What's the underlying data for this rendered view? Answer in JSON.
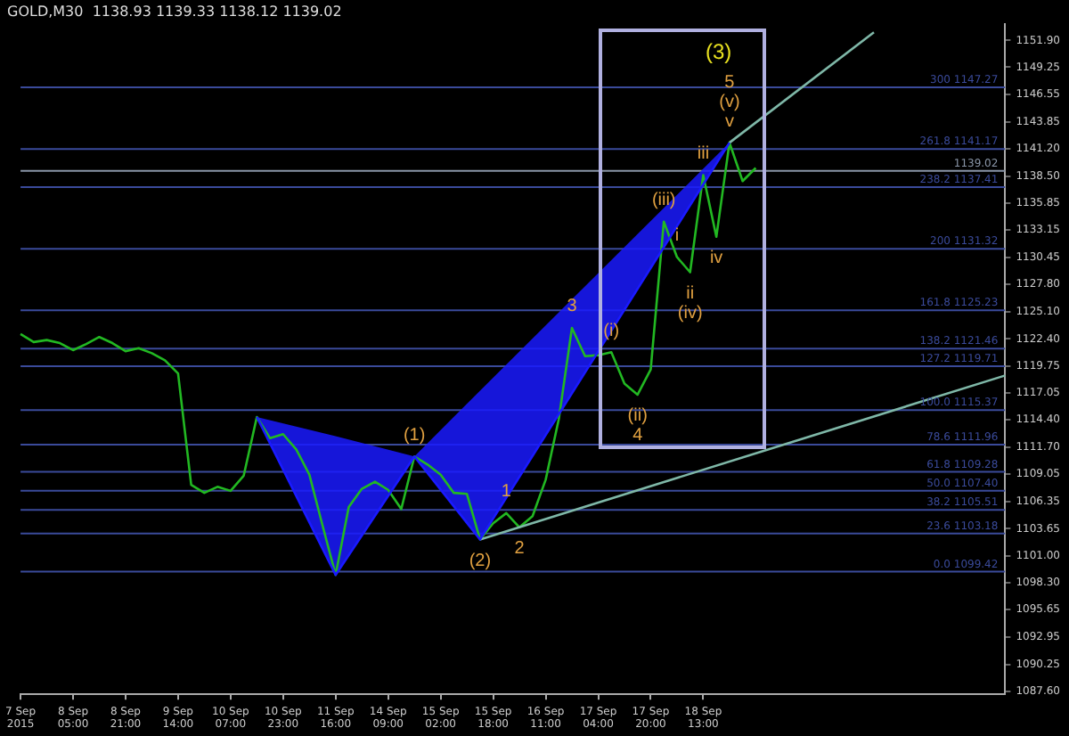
{
  "chart_data": {
    "type": "line",
    "title": "GOLD,M30  1138.93 1139.33 1138.12 1139.02",
    "categories": [
      "7 Sep 2015",
      null,
      null,
      null,
      "8 Sep 05:00",
      null,
      null,
      null,
      "8 Sep 21:00",
      null,
      null,
      null,
      "9 Sep 14:00",
      null,
      null,
      null,
      "10 Sep 07:00",
      null,
      null,
      null,
      "10 Sep 23:00",
      null,
      null,
      null,
      "11 Sep 16:00",
      null,
      null,
      null,
      "14 Sep 09:00",
      null,
      null,
      null,
      "15 Sep 02:00",
      null,
      null,
      null,
      "15 Sep 18:00",
      null,
      null,
      null,
      "16 Sep 11:00",
      null,
      null,
      null,
      "17 Sep 04:00",
      null,
      null,
      null,
      "17 Sep 20:00",
      null,
      null,
      null,
      "18 Sep 13:00",
      null,
      null,
      null,
      null,
      null,
      null,
      null,
      null,
      null,
      null,
      null,
      null,
      null,
      null,
      null,
      null,
      null,
      null,
      null,
      null,
      null,
      null,
      null
    ],
    "ylim": [
      1087.3,
      1153.5
    ],
    "yticks": [
      {
        "value": 1087.6,
        "label": "1087.60"
      },
      {
        "value": 1090.25,
        "label": "1090.25"
      },
      {
        "value": 1092.95,
        "label": "1092.95"
      },
      {
        "value": 1095.65,
        "label": "1095.65"
      },
      {
        "value": 1098.3,
        "label": "1098.30"
      },
      {
        "value": 1101.0,
        "label": "1101.00"
      },
      {
        "value": 1103.65,
        "label": "1103.65"
      },
      {
        "value": 1106.35,
        "label": "1106.35"
      },
      {
        "value": 1109.05,
        "label": "1109.05"
      },
      {
        "value": 1111.7,
        "label": "1111.70"
      },
      {
        "value": 1114.4,
        "label": "1114.40"
      },
      {
        "value": 1117.05,
        "label": "1117.05"
      },
      {
        "value": 1119.75,
        "label": "1119.75"
      },
      {
        "value": 1122.4,
        "label": "1122.40"
      },
      {
        "value": 1125.1,
        "label": "1125.10"
      },
      {
        "value": 1127.8,
        "label": "1127.80"
      },
      {
        "value": 1130.45,
        "label": "1130.45"
      },
      {
        "value": 1133.15,
        "label": "1133.15"
      },
      {
        "value": 1135.85,
        "label": "1135.85"
      },
      {
        "value": 1138.5,
        "label": "1138.50"
      },
      {
        "value": 1141.2,
        "label": "1141.20"
      },
      {
        "value": 1143.85,
        "label": "1143.85"
      },
      {
        "value": 1146.55,
        "label": "1146.55"
      },
      {
        "value": 1149.25,
        "label": "1149.25"
      },
      {
        "value": 1151.9,
        "label": "1151.90"
      }
    ],
    "grid": false,
    "legend": false,
    "series": [
      {
        "color": "#1a1aff",
        "values": [
          null,
          null,
          null,
          null,
          null,
          null,
          null,
          null,
          null,
          null,
          null,
          null,
          null,
          null,
          null,
          null,
          null,
          null,
          1114.7,
          null,
          null,
          null,
          null,
          null,
          1099.1,
          null,
          null,
          null,
          null,
          null,
          1110.8,
          null,
          null,
          null,
          null,
          1102.6,
          null,
          null,
          null,
          null,
          null,
          null,
          null,
          null,
          null,
          null,
          null,
          null,
          null,
          null,
          null,
          null,
          null,
          null,
          1141.8,
          null,
          null,
          null,
          null,
          null,
          null,
          null,
          null,
          null,
          null,
          null,
          null,
          null,
          null,
          null,
          null,
          null,
          null,
          null,
          null,
          null
        ],
        "lower": [
          null,
          null,
          null,
          null,
          null,
          null,
          null,
          null,
          null,
          null,
          null,
          null,
          null,
          null,
          null,
          null,
          null,
          null,
          1114.7,
          null,
          null,
          null,
          null,
          null,
          1099.1,
          null,
          null,
          null,
          null,
          null,
          1110.8,
          null,
          null,
          null,
          null,
          1102.6,
          null,
          null,
          null,
          null,
          null,
          null,
          null,
          null,
          null,
          null,
          null,
          null,
          null,
          null,
          null,
          null,
          null,
          null,
          1141.8,
          null,
          null,
          null,
          null,
          null,
          null,
          null,
          null,
          null,
          null,
          null,
          null,
          null,
          null,
          null,
          null,
          null,
          null,
          null,
          null,
          null
        ],
        "upper": [
          null,
          null,
          null,
          null,
          null,
          null,
          null,
          null,
          null,
          null,
          null,
          null,
          null,
          null,
          null,
          null,
          null,
          null,
          1114.7,
          null,
          null,
          null,
          null,
          null,
          1112.8,
          null,
          null,
          null,
          null,
          null,
          1110.8,
          null,
          null,
          null,
          null,
          1117.3,
          null,
          null,
          null,
          null,
          null,
          null,
          null,
          null,
          null,
          null,
          null,
          null,
          null,
          null,
          null,
          null,
          null,
          null,
          1141.8,
          null,
          null,
          null,
          null,
          null,
          null,
          null,
          null,
          null,
          null,
          null,
          null,
          null,
          null,
          null,
          null,
          null,
          null,
          null,
          null,
          null
        ]
      },
      {
        "color": "#7fb8a8",
        "values": [
          null,
          null,
          null,
          null,
          null,
          null,
          null,
          null,
          null,
          null,
          null,
          null,
          null,
          null,
          null,
          null,
          null,
          null,
          null,
          null,
          null,
          null,
          null,
          null,
          null,
          null,
          null,
          null,
          null,
          null,
          null,
          null,
          null,
          null,
          null,
          null,
          null,
          null,
          null,
          null,
          null,
          null,
          null,
          null,
          null,
          null,
          null,
          null,
          null,
          null,
          null,
          null,
          null,
          null,
          1141.8,
          null,
          null,
          null,
          null,
          null,
          null,
          null,
          null,
          null,
          null,
          1152.7,
          null,
          null,
          null,
          null,
          null,
          null,
          null,
          null,
          null,
          null
        ]
      },
      {
        "color": "#7fb8a8",
        "values": [
          null,
          null,
          null,
          null,
          null,
          null,
          null,
          null,
          null,
          null,
          null,
          null,
          null,
          null,
          null,
          null,
          null,
          null,
          null,
          null,
          null,
          null,
          null,
          null,
          null,
          null,
          null,
          null,
          null,
          null,
          null,
          null,
          null,
          null,
          null,
          1102.6,
          null,
          null,
          null,
          null,
          null,
          null,
          null,
          null,
          null,
          null,
          null,
          null,
          null,
          null,
          null,
          null,
          null,
          null,
          null,
          null,
          null,
          null,
          null,
          null,
          null,
          null,
          null,
          null,
          null,
          null,
          null,
          null,
          null,
          null,
          null,
          null,
          null,
          null,
          null,
          1118.8
        ]
      },
      {
        "color": "#22b822",
        "values": [
          1122.9,
          1122.1,
          1122.3,
          1122.0,
          1121.3,
          1121.9,
          1122.6,
          1122.0,
          1121.2,
          1121.5,
          1121.0,
          1120.3,
          1119.0,
          1108.0,
          1107.2,
          1107.8,
          1107.4,
          1108.9,
          1114.7,
          1112.6,
          1113.0,
          1111.5,
          1109.0,
          1104.0,
          1099.1,
          1105.8,
          1107.6,
          1108.3,
          1107.5,
          1105.6,
          1110.8,
          1110.0,
          1109.0,
          1107.2,
          1107.1,
          1102.6,
          1104.2,
          1105.2,
          1103.8,
          1104.9,
          1108.5,
          1114.5,
          1123.5,
          1120.7,
          1120.8,
          1121.1,
          1118.0,
          1116.9,
          1119.4,
          1134.0,
          1130.5,
          1129.0,
          1138.6,
          1132.5,
          1141.8,
          1138.0,
          1139.3,
          null,
          null,
          null,
          null,
          null,
          null,
          null,
          null,
          null,
          null,
          null,
          null,
          null,
          null,
          null,
          null,
          null,
          null,
          null
        ]
      }
    ],
    "annotations": [
      {
        "text": "(1)",
        "y": 1110.8
      },
      {
        "text": "(2)",
        "y": 1102.6
      },
      {
        "text": "1",
        "y": 1105.2
      },
      {
        "text": "2",
        "y": 1103.8
      },
      {
        "text": "3",
        "y": 1123.5
      },
      {
        "text": "(i)",
        "y": 1121.1
      },
      {
        "text": "(ii)",
        "y": 1116.9
      },
      {
        "text": "4",
        "y": 1116.9
      },
      {
        "text": "(iii)",
        "y": 1134.0
      },
      {
        "text": "i",
        "y": 1130.5
      },
      {
        "text": "ii",
        "y": 1129.0
      },
      {
        "text": "(iv)",
        "y": 1129.0
      },
      {
        "text": "iii",
        "y": 1138.6
      },
      {
        "text": "iv",
        "y": 1132.5
      },
      "(3)",
      {
        "text": "5",
        "y": 1141.8
      },
      {
        "text": "(v)",
        "y": 1141.8
      },
      {
        "text": "v",
        "y": 1141.8
      }
    ],
    "ref_lines": [
      {
        "axis": "y",
        "value": 1147.27,
        "label": "300 1147.27",
        "color": "#3a4a9a"
      },
      {
        "axis": "y",
        "value": 1141.17,
        "label": "261.8 1141.17",
        "color": "#3a4a9a"
      },
      {
        "axis": "y",
        "value": 1137.41,
        "label": "238.2 1137.41",
        "color": "#3a4a9a"
      },
      {
        "axis": "y",
        "value": 1131.32,
        "label": "200 1131.32",
        "color": "#3a4a9a"
      },
      {
        "axis": "y",
        "value": 1125.23,
        "label": "161.8 1125.23",
        "color": "#3a4a9a"
      },
      {
        "axis": "y",
        "value": 1121.46,
        "label": "138.2 1121.46",
        "color": "#3a4a9a"
      },
      {
        "axis": "y",
        "value": 1119.71,
        "label": "127.2 1119.71",
        "color": "#3a4a9a"
      },
      {
        "axis": "y",
        "value": 1115.37,
        "label": "100.0 1115.37",
        "color": "#3a4a9a"
      },
      {
        "axis": "y",
        "value": 1111.96,
        "label": "78.6 1111.96",
        "color": "#3a4a9a"
      },
      {
        "axis": "y",
        "value": 1109.28,
        "label": "61.8 1109.28",
        "color": "#3a4a9a"
      },
      {
        "axis": "y",
        "value": 1107.4,
        "label": "50.0 1107.40",
        "color": "#3a4a9a"
      },
      {
        "axis": "y",
        "value": 1105.51,
        "label": "38.2 1105.51",
        "color": "#3a4a9a"
      },
      {
        "axis": "y",
        "value": 1103.18,
        "label": "23.6 1103.18",
        "color": "#3a4a9a"
      },
      {
        "axis": "y",
        "value": 1099.42,
        "label": "0.0 1099.42",
        "color": "#3a4a9a"
      },
      {
        "axis": "y",
        "value": 1139.02,
        "label": "1139.02",
        "color": "#8a96a8"
      }
    ]
  }
}
